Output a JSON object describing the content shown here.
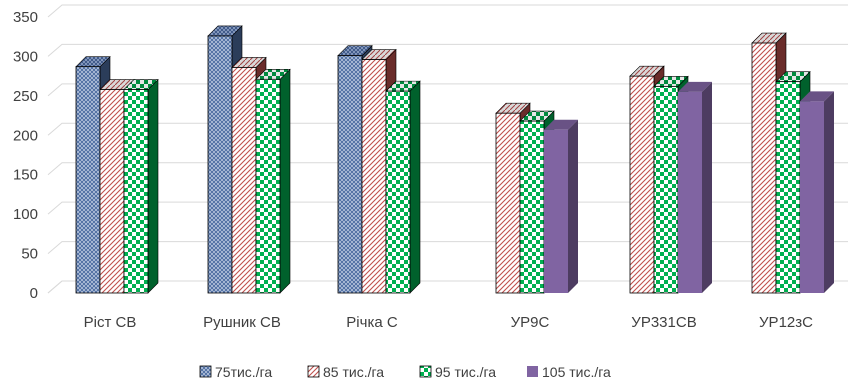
{
  "chart_data": {
    "type": "bar",
    "title": "",
    "xlabel": "",
    "ylabel": "",
    "ylim": [
      0,
      350
    ],
    "y_ticks": [
      "0",
      "50",
      "100",
      "150",
      "200",
      "250",
      "300",
      "350"
    ],
    "grid": true,
    "legend_position": "bottom",
    "categories": [
      "Ріст СВ",
      "Рушник СВ",
      "Річка С",
      "УР9С",
      "УР331СВ",
      "УР12зС"
    ],
    "series": [
      {
        "name": "75тис./га",
        "color": "#4f6fa3",
        "pattern": "dense-crosshatch",
        "values": [
          287,
          326,
          301,
          null,
          null,
          null
        ]
      },
      {
        "name": "85 тис./га",
        "color": "#c0504d",
        "pattern": "diagonal-stripes",
        "values": [
          258,
          286,
          296,
          228,
          275,
          317
        ]
      },
      {
        "name": "95 тис./га",
        "color": "#00b050",
        "pattern": "checkerboard",
        "values": [
          258,
          271,
          256,
          218,
          262,
          268
        ]
      },
      {
        "name": "105 тис./га",
        "color": "#8064a2",
        "pattern": "solid",
        "values": [
          null,
          null,
          null,
          207,
          255,
          243
        ]
      }
    ]
  }
}
